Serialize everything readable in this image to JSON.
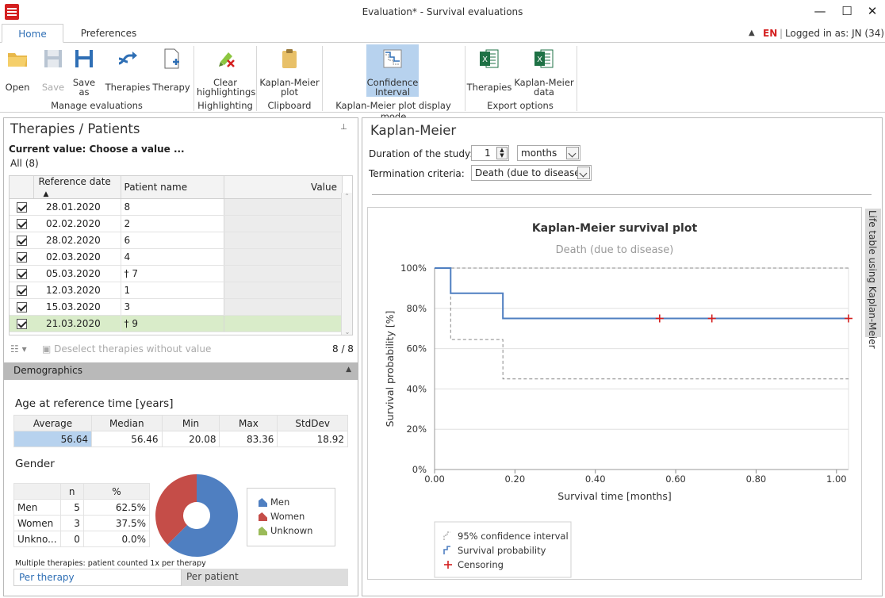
{
  "window": {
    "title": "Evaluation* - Survival evaluations",
    "minimize": "—",
    "maximize": "☐",
    "close": "✕"
  },
  "ribbon_tabs": {
    "home": "Home",
    "preferences": "Preferences"
  },
  "status": {
    "language": "EN",
    "login": "Logged in as:  JN  (34)"
  },
  "ribbon": {
    "open": "Open",
    "save": "Save",
    "save_as_1": "Save",
    "save_as_2": "as",
    "therapies": "Therapies",
    "therapy": "Therapy",
    "group_manage": "Manage evaluations",
    "clear_1": "Clear",
    "clear_2": "highlightings",
    "group_highlighting": "Highlighting",
    "km_plot_1": "Kaplan-Meier",
    "km_plot_2": "plot",
    "group_clipboard": "Clipboard",
    "ci_1": "Confidence",
    "ci_2": "Interval",
    "group_display": "Kaplan-Meier plot display mode",
    "export_therapies": "Therapies",
    "export_km_1": "Kaplan-Meier",
    "export_km_2": "data",
    "group_export": "Export options"
  },
  "left": {
    "title": "Therapies / Patients",
    "pin": "📌",
    "current_value_label": "Current value:  Choose a value ...",
    "filter": "All (8)",
    "columns": {
      "ref_date": "Reference date",
      "patient": "Patient name",
      "value": "Value"
    },
    "rows": [
      {
        "date": "28.01.2020",
        "patient": "8"
      },
      {
        "date": "02.02.2020",
        "patient": "2"
      },
      {
        "date": "28.02.2020",
        "patient": "6"
      },
      {
        "date": "02.03.2020",
        "patient": "4"
      },
      {
        "date": "05.03.2020",
        "patient": "† 7"
      },
      {
        "date": "12.03.2020",
        "patient": "1"
      },
      {
        "date": "15.03.2020",
        "patient": "3"
      },
      {
        "date": "21.03.2020",
        "patient": "† 9"
      }
    ],
    "deselect": "Deselect therapies without value",
    "count": "8 / 8",
    "demographics": "Demographics",
    "age_title": "Age at reference time [years]",
    "age_headers": [
      "Average",
      "Median",
      "Min",
      "Max",
      "StdDev"
    ],
    "age_values": [
      "56.64",
      "56.46",
      "20.08",
      "83.36",
      "18.92"
    ],
    "gender_title": "Gender",
    "gender_headers": [
      "",
      "n",
      "%"
    ],
    "gender_rows": [
      {
        "label": "Men",
        "n": "5",
        "pct": "62.5%"
      },
      {
        "label": "Women",
        "n": "3",
        "pct": "37.5%"
      },
      {
        "label": "Unkno...",
        "n": "0",
        "pct": "0.0%"
      }
    ],
    "legend": [
      "Men",
      "Women",
      "Unknown"
    ],
    "colors": {
      "men": "#4f7fc1",
      "women": "#c54d48",
      "unknown": "#9bbb59"
    },
    "pie": {
      "men": 62.5,
      "women": 37.5,
      "unknown": 0
    },
    "note": "Multiple therapies: patient counted 1x per therapy",
    "tab_per_therapy": "Per therapy",
    "tab_per_patient": "Per patient"
  },
  "right": {
    "title": "Kaplan-Meier",
    "duration_label": "Duration of the study:",
    "duration_value": "1",
    "duration_unit": "months",
    "termination_label": "Termination criteria:",
    "termination_value": "Death (due to disease)",
    "side_tab": "Life table using Kaplan-Meier"
  },
  "chart_data": {
    "type": "line",
    "title": "Kaplan-Meier survival plot",
    "subtitle": "Death (due to disease)",
    "xlabel": "Survival time [months]",
    "ylabel": "Survival probability [%]",
    "xlim": [
      0,
      1.03
    ],
    "ylim": [
      0,
      100
    ],
    "x_ticks": [
      "0.00",
      "0.20",
      "0.40",
      "0.60",
      "0.80",
      "1.00"
    ],
    "y_ticks": [
      "0%",
      "20%",
      "40%",
      "60%",
      "80%",
      "100%"
    ],
    "series": [
      {
        "name": "Survival probability",
        "color": "#4f7fc1",
        "x": [
          0,
          0.04,
          0.04,
          0.17,
          0.17,
          1.03
        ],
        "y": [
          100,
          100,
          87.5,
          87.5,
          75,
          75
        ]
      },
      {
        "name": "95% confidence interval",
        "color": "#888888",
        "upper_x": [
          0,
          1.03
        ],
        "upper_y": [
          100,
          100
        ],
        "lower_x": [
          0,
          0.04,
          0.04,
          0.17,
          0.17,
          1.03
        ],
        "lower_y": [
          100,
          100,
          64.5,
          64.5,
          45,
          45
        ]
      },
      {
        "name": "Censoring",
        "color": "#d42020",
        "x": [
          0.56,
          0.69,
          1.03
        ],
        "y": [
          75,
          75,
          75
        ]
      }
    ],
    "legend": [
      "95% confidence interval",
      "Survival probability",
      "Censoring"
    ]
  }
}
